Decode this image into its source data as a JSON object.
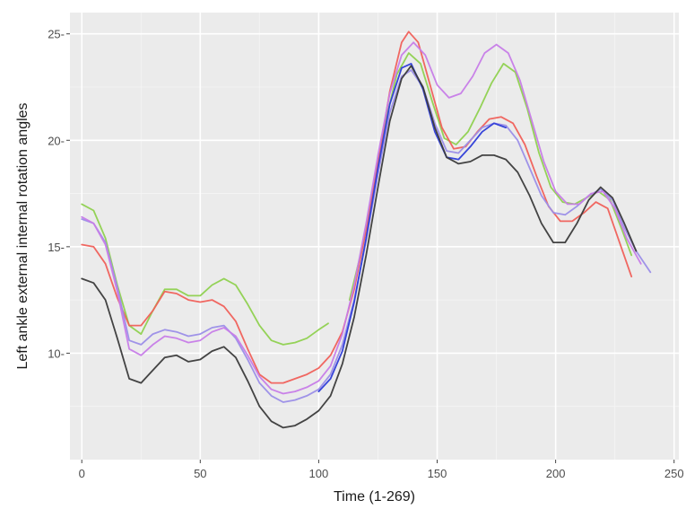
{
  "chart_data": {
    "type": "line",
    "xlabel": "Time (1-269)",
    "ylabel": "Left ankle external internal rotation angles",
    "xlim": [
      -5,
      252
    ],
    "ylim": [
      5.0,
      26.0
    ],
    "x_ticks": [
      0,
      50,
      100,
      150,
      200,
      250
    ],
    "y_ticks": [
      10,
      15,
      20,
      25
    ],
    "x_tick_labels": [
      "0",
      "50",
      "100",
      "150",
      "200",
      "250"
    ],
    "y_tick_labels": [
      "10-",
      "15-",
      "20-",
      "25-"
    ],
    "grid": true,
    "legend": "none",
    "series": [
      {
        "color": "#8fd14f",
        "points": [
          [
            0,
            17.0
          ],
          [
            5,
            16.7
          ],
          [
            10,
            15.4
          ],
          [
            15,
            13.2
          ],
          [
            20,
            11.3
          ],
          [
            25,
            10.9
          ],
          [
            30,
            12.0
          ],
          [
            35,
            13.0
          ],
          [
            40,
            13.0
          ],
          [
            45,
            12.7
          ],
          [
            50,
            12.7
          ],
          [
            55,
            13.2
          ],
          [
            60,
            13.5
          ],
          [
            65,
            13.2
          ],
          [
            70,
            12.3
          ],
          [
            75,
            11.3
          ],
          [
            80,
            10.6
          ],
          [
            85,
            10.4
          ],
          [
            90,
            10.5
          ],
          [
            95,
            10.7
          ],
          [
            100,
            11.1
          ],
          [
            104,
            11.4
          ],
          [
            null,
            null
          ],
          [
            113,
            12.5
          ],
          [
            118,
            14.8
          ],
          [
            123,
            17.8
          ],
          [
            128,
            20.8
          ],
          [
            133,
            23.1
          ],
          [
            138,
            24.1
          ],
          [
            143,
            23.6
          ],
          [
            148,
            21.8
          ],
          [
            153,
            20.1
          ],
          [
            158,
            19.8
          ],
          [
            163,
            20.4
          ],
          [
            168,
            21.5
          ],
          [
            173,
            22.7
          ],
          [
            178,
            23.6
          ],
          [
            183,
            23.2
          ],
          [
            188,
            21.5
          ],
          [
            193,
            19.4
          ],
          [
            198,
            17.8
          ],
          [
            203,
            17.1
          ],
          [
            208,
            17.0
          ],
          [
            213,
            17.3
          ],
          [
            218,
            17.6
          ],
          [
            223,
            17.2
          ],
          [
            228,
            15.8
          ],
          [
            232,
            14.6
          ]
        ]
      },
      {
        "color": "#f0605a",
        "points": [
          [
            0,
            15.1
          ],
          [
            5,
            15.0
          ],
          [
            10,
            14.2
          ],
          [
            15,
            12.6
          ],
          [
            20,
            11.3
          ],
          [
            25,
            11.3
          ],
          [
            30,
            12.0
          ],
          [
            35,
            12.9
          ],
          [
            40,
            12.8
          ],
          [
            45,
            12.5
          ],
          [
            50,
            12.4
          ],
          [
            55,
            12.5
          ],
          [
            60,
            12.2
          ],
          [
            65,
            11.5
          ],
          [
            70,
            10.2
          ],
          [
            75,
            9.0
          ],
          [
            80,
            8.6
          ],
          [
            85,
            8.6
          ],
          [
            90,
            8.8
          ],
          [
            95,
            9.0
          ],
          [
            100,
            9.3
          ],
          [
            105,
            9.9
          ],
          [
            110,
            11.0
          ],
          [
            115,
            13.0
          ],
          [
            120,
            15.8
          ],
          [
            125,
            19.0
          ],
          [
            130,
            22.3
          ],
          [
            135,
            24.6
          ],
          [
            138,
            25.1
          ],
          [
            142,
            24.6
          ],
          [
            147,
            22.6
          ],
          [
            152,
            20.6
          ],
          [
            157,
            19.6
          ],
          [
            162,
            19.7
          ],
          [
            167,
            20.4
          ],
          [
            172,
            21.0
          ],
          [
            177,
            21.1
          ],
          [
            182,
            20.8
          ],
          [
            187,
            19.8
          ],
          [
            192,
            18.3
          ],
          [
            197,
            16.9
          ],
          [
            202,
            16.2
          ],
          [
            207,
            16.2
          ],
          [
            212,
            16.6
          ],
          [
            217,
            17.1
          ],
          [
            222,
            16.8
          ],
          [
            227,
            15.2
          ],
          [
            232,
            13.6
          ]
        ]
      },
      {
        "color": "#9b8ee8",
        "points": [
          [
            0,
            16.3
          ],
          [
            5,
            16.1
          ],
          [
            10,
            15.2
          ],
          [
            15,
            13.1
          ],
          [
            20,
            10.6
          ],
          [
            25,
            10.4
          ],
          [
            30,
            10.9
          ],
          [
            35,
            11.1
          ],
          [
            40,
            11.0
          ],
          [
            45,
            10.8
          ],
          [
            50,
            10.9
          ],
          [
            55,
            11.2
          ],
          [
            60,
            11.3
          ],
          [
            65,
            10.7
          ],
          [
            70,
            9.7
          ],
          [
            75,
            8.6
          ],
          [
            80,
            8.0
          ],
          [
            85,
            7.7
          ],
          [
            90,
            7.8
          ],
          [
            95,
            8.0
          ],
          [
            100,
            8.3
          ],
          [
            105,
            9.0
          ],
          [
            110,
            10.4
          ],
          [
            115,
            12.5
          ],
          [
            120,
            15.3
          ],
          [
            125,
            18.4
          ],
          [
            130,
            21.3
          ],
          [
            135,
            23.0
          ],
          [
            139,
            23.3
          ],
          [
            144,
            22.5
          ],
          [
            149,
            20.8
          ],
          [
            154,
            19.5
          ],
          [
            159,
            19.4
          ],
          [
            164,
            20.0
          ],
          [
            169,
            20.6
          ],
          [
            174,
            20.8
          ],
          [
            179,
            20.7
          ],
          [
            184,
            20.0
          ],
          [
            189,
            18.7
          ],
          [
            194,
            17.4
          ],
          [
            199,
            16.6
          ],
          [
            204,
            16.5
          ],
          [
            209,
            16.9
          ],
          [
            214,
            17.4
          ],
          [
            219,
            17.7
          ],
          [
            224,
            17.2
          ],
          [
            229,
            15.9
          ],
          [
            234,
            14.8
          ],
          [
            240,
            13.8
          ]
        ]
      },
      {
        "color": "#c77ce8",
        "points": [
          [
            0,
            16.4
          ],
          [
            5,
            16.1
          ],
          [
            10,
            15.1
          ],
          [
            15,
            12.9
          ],
          [
            20,
            10.2
          ],
          [
            25,
            9.9
          ],
          [
            30,
            10.4
          ],
          [
            35,
            10.8
          ],
          [
            40,
            10.7
          ],
          [
            45,
            10.5
          ],
          [
            50,
            10.6
          ],
          [
            55,
            11.0
          ],
          [
            60,
            11.2
          ],
          [
            65,
            10.8
          ],
          [
            70,
            9.9
          ],
          [
            75,
            8.9
          ],
          [
            80,
            8.3
          ],
          [
            85,
            8.1
          ],
          [
            90,
            8.2
          ],
          [
            95,
            8.4
          ],
          [
            100,
            8.7
          ],
          [
            105,
            9.4
          ],
          [
            110,
            10.9
          ],
          [
            115,
            13.2
          ],
          [
            120,
            16.1
          ],
          [
            125,
            19.3
          ],
          [
            130,
            22.2
          ],
          [
            135,
            24.0
          ],
          [
            140,
            24.6
          ],
          [
            145,
            24.0
          ],
          [
            150,
            22.6
          ],
          [
            155,
            22.0
          ],
          [
            160,
            22.2
          ],
          [
            165,
            23.0
          ],
          [
            170,
            24.1
          ],
          [
            175,
            24.5
          ],
          [
            180,
            24.1
          ],
          [
            185,
            22.8
          ],
          [
            190,
            20.9
          ],
          [
            195,
            19.0
          ],
          [
            200,
            17.6
          ],
          [
            205,
            17.0
          ],
          [
            210,
            17.0
          ],
          [
            215,
            17.5
          ],
          [
            220,
            17.6
          ],
          [
            225,
            16.8
          ],
          [
            230,
            15.4
          ],
          [
            236,
            14.2
          ]
        ]
      },
      {
        "color": "#2d3cd8",
        "points": [
          [
            100,
            8.2
          ],
          [
            105,
            8.8
          ],
          [
            110,
            10.1
          ],
          [
            115,
            12.4
          ],
          [
            120,
            15.4
          ],
          [
            125,
            18.7
          ],
          [
            130,
            21.7
          ],
          [
            135,
            23.4
          ],
          [
            139,
            23.6
          ],
          [
            144,
            22.4
          ],
          [
            149,
            20.4
          ],
          [
            154,
            19.2
          ],
          [
            159,
            19.1
          ],
          [
            164,
            19.7
          ],
          [
            169,
            20.4
          ],
          [
            174,
            20.8
          ],
          [
            179,
            20.6
          ]
        ]
      },
      {
        "color": "#3a3a3a",
        "points": [
          [
            0,
            13.5
          ],
          [
            5,
            13.3
          ],
          [
            10,
            12.5
          ],
          [
            15,
            10.7
          ],
          [
            20,
            8.8
          ],
          [
            25,
            8.6
          ],
          [
            30,
            9.2
          ],
          [
            35,
            9.8
          ],
          [
            40,
            9.9
          ],
          [
            45,
            9.6
          ],
          [
            50,
            9.7
          ],
          [
            55,
            10.1
          ],
          [
            60,
            10.3
          ],
          [
            65,
            9.8
          ],
          [
            70,
            8.7
          ],
          [
            75,
            7.5
          ],
          [
            80,
            6.8
          ],
          [
            85,
            6.5
          ],
          [
            90,
            6.6
          ],
          [
            95,
            6.9
          ],
          [
            100,
            7.3
          ],
          [
            105,
            8.0
          ],
          [
            110,
            9.5
          ],
          [
            115,
            11.7
          ],
          [
            120,
            14.6
          ],
          [
            125,
            17.8
          ],
          [
            130,
            20.9
          ],
          [
            135,
            22.9
          ],
          [
            139,
            23.5
          ],
          [
            144,
            22.5
          ],
          [
            149,
            20.6
          ],
          [
            154,
            19.2
          ],
          [
            159,
            18.9
          ],
          [
            164,
            19.0
          ],
          [
            169,
            19.3
          ],
          [
            174,
            19.3
          ],
          [
            179,
            19.1
          ],
          [
            184,
            18.5
          ],
          [
            189,
            17.4
          ],
          [
            194,
            16.1
          ],
          [
            199,
            15.2
          ],
          [
            204,
            15.2
          ],
          [
            209,
            16.1
          ],
          [
            214,
            17.2
          ],
          [
            219,
            17.8
          ],
          [
            224,
            17.3
          ],
          [
            229,
            16.1
          ],
          [
            234,
            14.8
          ]
        ]
      }
    ]
  }
}
